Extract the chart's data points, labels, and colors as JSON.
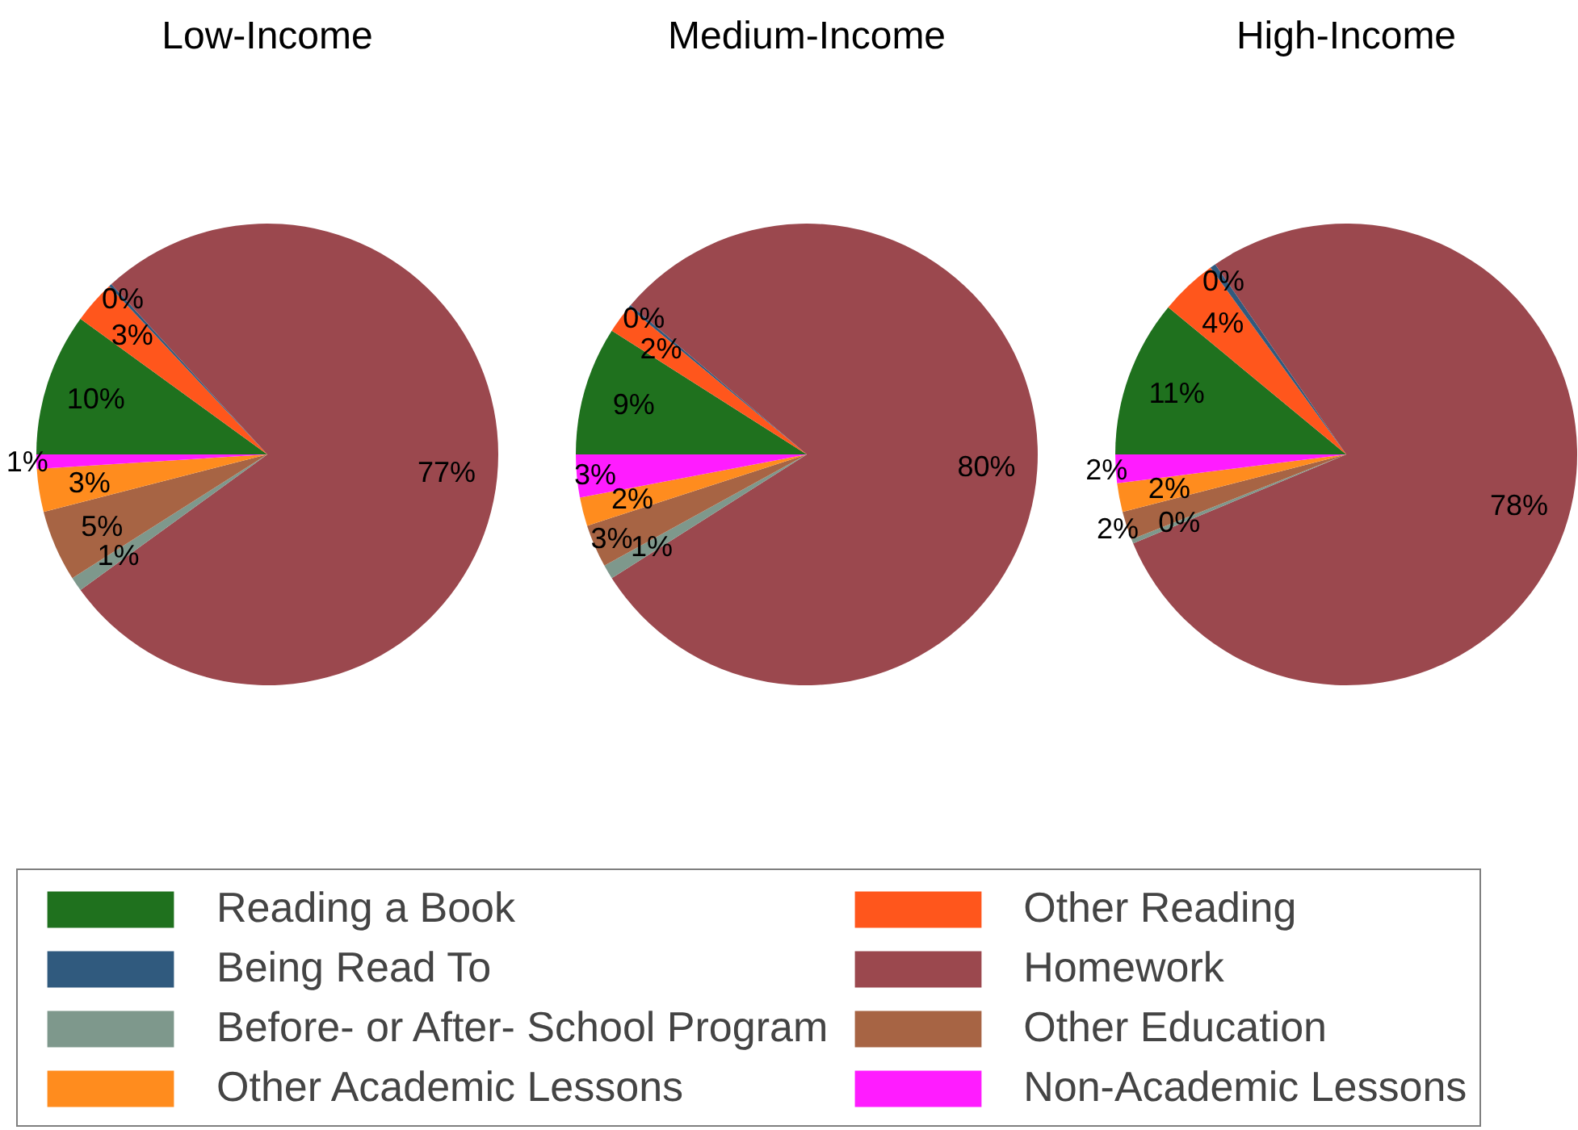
{
  "chart_data": [
    {
      "type": "pie",
      "title": "Low-Income",
      "categories": [
        "Reading a Book",
        "Other Reading",
        "Being Read To",
        "Homework",
        "Before- or After- School Program",
        "Other Education",
        "Other Academic Lessons",
        "Non-Academic Lessons"
      ],
      "values": [
        10,
        3,
        0.2,
        76.8,
        1,
        5,
        3,
        1
      ],
      "value_labels": [
        "10%",
        "3%",
        "0%",
        "77%",
        "1%",
        "5%",
        "3%",
        "1%"
      ],
      "colors": [
        "#1f711e",
        "#ff561c",
        "#305a7e",
        "#9b484e",
        "#7e988c",
        "#a76444",
        "#ff8c1e",
        "#ff1cff"
      ],
      "legend": "bottom"
    },
    {
      "type": "pie",
      "title": "Medium-Income",
      "values": [
        9,
        2,
        0.2,
        79.8,
        1,
        3,
        2,
        3
      ],
      "value_labels": [
        "9%",
        "2%",
        "0%",
        "80%",
        "1%",
        "3%",
        "2%",
        "3%"
      ],
      "colors": [
        "#1f711e",
        "#ff561c",
        "#305a7e",
        "#9b484e",
        "#7e988c",
        "#a76444",
        "#ff8c1e",
        "#ff1cff"
      ]
    },
    {
      "type": "pie",
      "title": "High-Income",
      "values": [
        11,
        4,
        0.4,
        78.3,
        0.3,
        2,
        2,
        2
      ],
      "value_labels": [
        "11%",
        "4%",
        "0%",
        "78%",
        "0%",
        "2%",
        "2%",
        "2%"
      ],
      "colors": [
        "#1f711e",
        "#ff561c",
        "#305a7e",
        "#9b484e",
        "#7e988c",
        "#a76444",
        "#ff8c1e",
        "#ff1cff"
      ]
    }
  ]
}
